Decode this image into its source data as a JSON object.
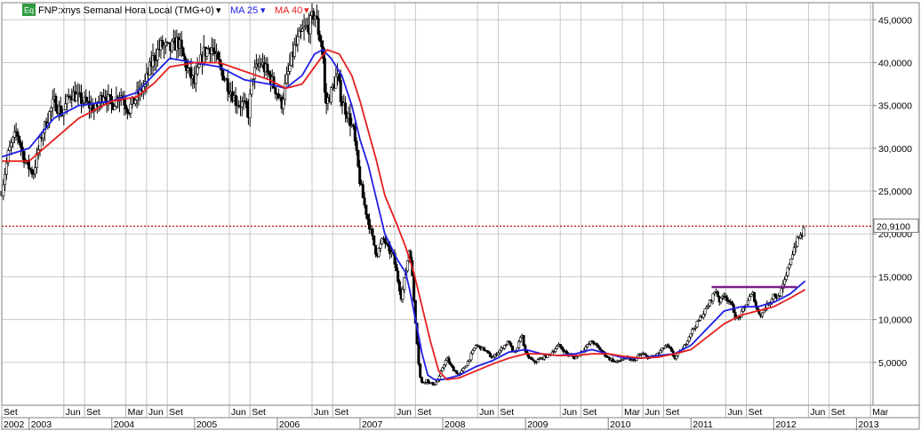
{
  "header": {
    "icon_label": "Eq",
    "symbol_label": "FNP:xnys Semanal Hora Local (TMG+0)",
    "ma_short_label": "MA 25",
    "ma_long_label": "MA 40",
    "dropdown_glyph": "▾"
  },
  "colors": {
    "price": "#000000",
    "ma_short": "#1e1ee6",
    "ma_long": "#e61e1e",
    "resistance": "#7a1f8c",
    "current_line": "#c00000",
    "grid": "#c8c8c8",
    "icon_bg": "#2e9b3e"
  },
  "chart_data": {
    "type": "candlestick",
    "title": "FNP:xnys Semanal Hora Local (TMG+0)",
    "interval": "weekly",
    "x_range": [
      2002.67,
      2013.2
    ],
    "ylim": [
      0,
      47000
    ],
    "y_ticks": [
      {
        "value": 5000,
        "label": "5,0000"
      },
      {
        "value": 10000,
        "label": "10,0000"
      },
      {
        "value": 15000,
        "label": "15,0000"
      },
      {
        "value": 20000,
        "label": "20,0000"
      },
      {
        "value": 25000,
        "label": "25,0000"
      },
      {
        "value": 30000,
        "label": "30,0000"
      },
      {
        "value": 35000,
        "label": "35,0000"
      },
      {
        "value": 40000,
        "label": "40,0000"
      },
      {
        "value": 45000,
        "label": "45,0000"
      }
    ],
    "current_value": {
      "value": 20910,
      "label": "20,9100"
    },
    "month_ticks": [
      {
        "t": 2002.67,
        "label": "Set"
      },
      {
        "t": 2003.42,
        "label": "Jun"
      },
      {
        "t": 2003.67,
        "label": "Set"
      },
      {
        "t": 2004.17,
        "label": "Mar"
      },
      {
        "t": 2004.42,
        "label": "Jun"
      },
      {
        "t": 2004.67,
        "label": "Set"
      },
      {
        "t": 2005.42,
        "label": "Jun"
      },
      {
        "t": 2005.67,
        "label": "Set"
      },
      {
        "t": 2006.42,
        "label": "Jun"
      },
      {
        "t": 2006.67,
        "label": "Set"
      },
      {
        "t": 2007.42,
        "label": "Jun"
      },
      {
        "t": 2007.67,
        "label": "Set"
      },
      {
        "t": 2008.42,
        "label": "Jun"
      },
      {
        "t": 2008.67,
        "label": "Set"
      },
      {
        "t": 2009.42,
        "label": "Jun"
      },
      {
        "t": 2009.67,
        "label": "Set"
      },
      {
        "t": 2010.17,
        "label": "Mar"
      },
      {
        "t": 2010.42,
        "label": "Jun"
      },
      {
        "t": 2010.67,
        "label": "Set"
      },
      {
        "t": 2011.42,
        "label": "Jun"
      },
      {
        "t": 2011.67,
        "label": "Set"
      },
      {
        "t": 2012.42,
        "label": "Jun"
      },
      {
        "t": 2012.67,
        "label": "Set"
      },
      {
        "t": 2013.17,
        "label": "Mar"
      }
    ],
    "year_ticks": [
      {
        "t": 2002.67,
        "label": "2002"
      },
      {
        "t": 2003.0,
        "label": "2003"
      },
      {
        "t": 2004.0,
        "label": "2004"
      },
      {
        "t": 2005.0,
        "label": "2005"
      },
      {
        "t": 2006.0,
        "label": "2006"
      },
      {
        "t": 2007.0,
        "label": "2007"
      },
      {
        "t": 2008.0,
        "label": "2008"
      },
      {
        "t": 2009.0,
        "label": "2009"
      },
      {
        "t": 2010.0,
        "label": "2010"
      },
      {
        "t": 2011.0,
        "label": "2011"
      },
      {
        "t": 2012.0,
        "label": "2012"
      },
      {
        "t": 2013.0,
        "label": "2013"
      }
    ],
    "price_path": [
      [
        2002.67,
        25000
      ],
      [
        2002.75,
        29500
      ],
      [
        2002.85,
        32000
      ],
      [
        2002.95,
        28500
      ],
      [
        2003.05,
        27000
      ],
      [
        2003.15,
        31500
      ],
      [
        2003.3,
        35500
      ],
      [
        2003.4,
        34000
      ],
      [
        2003.5,
        36500
      ],
      [
        2003.65,
        35500
      ],
      [
        2003.8,
        34500
      ],
      [
        2003.9,
        36500
      ],
      [
        2004.0,
        35000
      ],
      [
        2004.1,
        36500
      ],
      [
        2004.2,
        34500
      ],
      [
        2004.3,
        36000
      ],
      [
        2004.4,
        37500
      ],
      [
        2004.5,
        40500
      ],
      [
        2004.6,
        42000
      ],
      [
        2004.7,
        41500
      ],
      [
        2004.8,
        42500
      ],
      [
        2004.9,
        39500
      ],
      [
        2005.0,
        37500
      ],
      [
        2005.1,
        41000
      ],
      [
        2005.2,
        42000
      ],
      [
        2005.3,
        39500
      ],
      [
        2005.4,
        37500
      ],
      [
        2005.5,
        35500
      ],
      [
        2005.6,
        35000
      ],
      [
        2005.65,
        34000
      ],
      [
        2005.7,
        38500
      ],
      [
        2005.8,
        40000
      ],
      [
        2005.9,
        38500
      ],
      [
        2006.0,
        36500
      ],
      [
        2006.05,
        35000
      ],
      [
        2006.1,
        37500
      ],
      [
        2006.2,
        41500
      ],
      [
        2006.3,
        43500
      ],
      [
        2006.4,
        44500
      ],
      [
        2006.45,
        46000
      ],
      [
        2006.5,
        43500
      ],
      [
        2006.55,
        41500
      ],
      [
        2006.58,
        35000
      ],
      [
        2006.65,
        36500
      ],
      [
        2006.72,
        38500
      ],
      [
        2006.78,
        35500
      ],
      [
        2006.85,
        34000
      ],
      [
        2006.92,
        32000
      ],
      [
        2007.0,
        26000
      ],
      [
        2007.05,
        23500
      ],
      [
        2007.1,
        21500
      ],
      [
        2007.15,
        19500
      ],
      [
        2007.2,
        17500
      ],
      [
        2007.28,
        19500
      ],
      [
        2007.35,
        18000
      ],
      [
        2007.4,
        17500
      ],
      [
        2007.45,
        15000
      ],
      [
        2007.5,
        12500
      ],
      [
        2007.55,
        15500
      ],
      [
        2007.6,
        18500
      ],
      [
        2007.62,
        16500
      ],
      [
        2007.66,
        11000
      ],
      [
        2007.7,
        6000
      ],
      [
        2007.72,
        3500
      ],
      [
        2007.75,
        2500
      ],
      [
        2007.8,
        3000
      ],
      [
        2007.85,
        2500
      ],
      [
        2007.9,
        2500
      ],
      [
        2007.95,
        3000
      ],
      [
        2008.0,
        4500
      ],
      [
        2008.05,
        5500
      ],
      [
        2008.1,
        4500
      ],
      [
        2008.2,
        3500
      ],
      [
        2008.3,
        5000
      ],
      [
        2008.4,
        7000
      ],
      [
        2008.5,
        6500
      ],
      [
        2008.6,
        5500
      ],
      [
        2008.7,
        6500
      ],
      [
        2008.8,
        7500
      ],
      [
        2008.85,
        6000
      ],
      [
        2008.9,
        6500
      ],
      [
        2008.95,
        8500
      ],
      [
        2009.0,
        6000
      ],
      [
        2009.1,
        5000
      ],
      [
        2009.2,
        5500
      ],
      [
        2009.3,
        6000
      ],
      [
        2009.4,
        7000
      ],
      [
        2009.5,
        6000
      ],
      [
        2009.6,
        5500
      ],
      [
        2009.7,
        6500
      ],
      [
        2009.8,
        7500
      ],
      [
        2009.9,
        6500
      ],
      [
        2010.0,
        5500
      ],
      [
        2010.1,
        5000
      ],
      [
        2010.2,
        5500
      ],
      [
        2010.3,
        5200
      ],
      [
        2010.4,
        6000
      ],
      [
        2010.5,
        5500
      ],
      [
        2010.6,
        6000
      ],
      [
        2010.7,
        7000
      ],
      [
        2010.75,
        6500
      ],
      [
        2010.8,
        5500
      ],
      [
        2010.9,
        6500
      ],
      [
        2011.0,
        8500
      ],
      [
        2011.1,
        10000
      ],
      [
        2011.2,
        11500
      ],
      [
        2011.3,
        13500
      ],
      [
        2011.35,
        12000
      ],
      [
        2011.4,
        13000
      ],
      [
        2011.5,
        11500
      ],
      [
        2011.55,
        10000
      ],
      [
        2011.6,
        10500
      ],
      [
        2011.7,
        12500
      ],
      [
        2011.75,
        13000
      ],
      [
        2011.8,
        11000
      ],
      [
        2011.85,
        10500
      ],
      [
        2011.9,
        11500
      ],
      [
        2011.95,
        12000
      ],
      [
        2012.0,
        13000
      ],
      [
        2012.05,
        12500
      ],
      [
        2012.1,
        13500
      ],
      [
        2012.15,
        15000
      ],
      [
        2012.2,
        17000
      ],
      [
        2012.25,
        18500
      ],
      [
        2012.3,
        19500
      ],
      [
        2012.35,
        20000
      ],
      [
        2012.38,
        21000
      ]
    ],
    "series": [
      {
        "name": "MA 25",
        "points": [
          [
            2002.67,
            29000
          ],
          [
            2003.0,
            30000
          ],
          [
            2003.3,
            33500
          ],
          [
            2003.6,
            35000
          ],
          [
            2004.0,
            35500
          ],
          [
            2004.3,
            36500
          ],
          [
            2004.5,
            38500
          ],
          [
            2004.7,
            40500
          ],
          [
            2005.0,
            40000
          ],
          [
            2005.3,
            39500
          ],
          [
            2005.6,
            38000
          ],
          [
            2005.9,
            37500
          ],
          [
            2006.1,
            37000
          ],
          [
            2006.3,
            38500
          ],
          [
            2006.45,
            41000
          ],
          [
            2006.55,
            41500
          ],
          [
            2006.65,
            40500
          ],
          [
            2006.78,
            38500
          ],
          [
            2006.9,
            35000
          ],
          [
            2007.0,
            31000
          ],
          [
            2007.1,
            28000
          ],
          [
            2007.2,
            24000
          ],
          [
            2007.3,
            20000
          ],
          [
            2007.45,
            17000
          ],
          [
            2007.55,
            15500
          ],
          [
            2007.6,
            13500
          ],
          [
            2007.68,
            9500
          ],
          [
            2007.75,
            6000
          ],
          [
            2007.82,
            3500
          ],
          [
            2007.9,
            3000
          ],
          [
            2008.0,
            3000
          ],
          [
            2008.2,
            3500
          ],
          [
            2008.4,
            4500
          ],
          [
            2008.6,
            5200
          ],
          [
            2008.8,
            6200
          ],
          [
            2009.0,
            6500
          ],
          [
            2009.2,
            6000
          ],
          [
            2009.4,
            5800
          ],
          [
            2009.6,
            6000
          ],
          [
            2009.8,
            6500
          ],
          [
            2010.0,
            6000
          ],
          [
            2010.2,
            5500
          ],
          [
            2010.4,
            5500
          ],
          [
            2010.6,
            5800
          ],
          [
            2010.8,
            6000
          ],
          [
            2011.0,
            7000
          ],
          [
            2011.2,
            9000
          ],
          [
            2011.4,
            11000
          ],
          [
            2011.6,
            11500
          ],
          [
            2011.8,
            11500
          ],
          [
            2012.0,
            12000
          ],
          [
            2012.2,
            13000
          ],
          [
            2012.38,
            14500
          ]
        ]
      },
      {
        "name": "MA 40",
        "points": [
          [
            2002.67,
            28500
          ],
          [
            2003.0,
            28500
          ],
          [
            2003.3,
            31000
          ],
          [
            2003.6,
            33500
          ],
          [
            2004.0,
            35500
          ],
          [
            2004.3,
            36000
          ],
          [
            2004.5,
            37500
          ],
          [
            2004.7,
            39500
          ],
          [
            2005.0,
            40000
          ],
          [
            2005.3,
            40000
          ],
          [
            2005.6,
            39000
          ],
          [
            2005.9,
            38000
          ],
          [
            2006.1,
            37000
          ],
          [
            2006.3,
            37500
          ],
          [
            2006.45,
            39500
          ],
          [
            2006.6,
            41500
          ],
          [
            2006.75,
            41000
          ],
          [
            2006.9,
            38500
          ],
          [
            2007.0,
            35500
          ],
          [
            2007.1,
            32000
          ],
          [
            2007.2,
            28500
          ],
          [
            2007.3,
            24500
          ],
          [
            2007.45,
            21000
          ],
          [
            2007.55,
            18500
          ],
          [
            2007.65,
            15500
          ],
          [
            2007.75,
            11500
          ],
          [
            2007.85,
            7500
          ],
          [
            2007.95,
            4000
          ],
          [
            2008.05,
            3000
          ],
          [
            2008.2,
            3200
          ],
          [
            2008.4,
            4000
          ],
          [
            2008.6,
            4800
          ],
          [
            2008.8,
            5500
          ],
          [
            2009.0,
            6000
          ],
          [
            2009.2,
            6000
          ],
          [
            2009.4,
            5800
          ],
          [
            2009.6,
            5800
          ],
          [
            2009.8,
            6000
          ],
          [
            2010.0,
            6000
          ],
          [
            2010.2,
            5700
          ],
          [
            2010.4,
            5500
          ],
          [
            2010.6,
            5600
          ],
          [
            2010.8,
            6000
          ],
          [
            2011.0,
            6500
          ],
          [
            2011.2,
            8000
          ],
          [
            2011.4,
            9500
          ],
          [
            2011.6,
            10500
          ],
          [
            2011.8,
            11000
          ],
          [
            2012.0,
            11500
          ],
          [
            2012.2,
            12500
          ],
          [
            2012.38,
            13500
          ]
        ]
      }
    ],
    "resistance_line": {
      "from": [
        2011.25,
        13800
      ],
      "to": [
        2012.28,
        13800
      ]
    },
    "grid": true
  }
}
